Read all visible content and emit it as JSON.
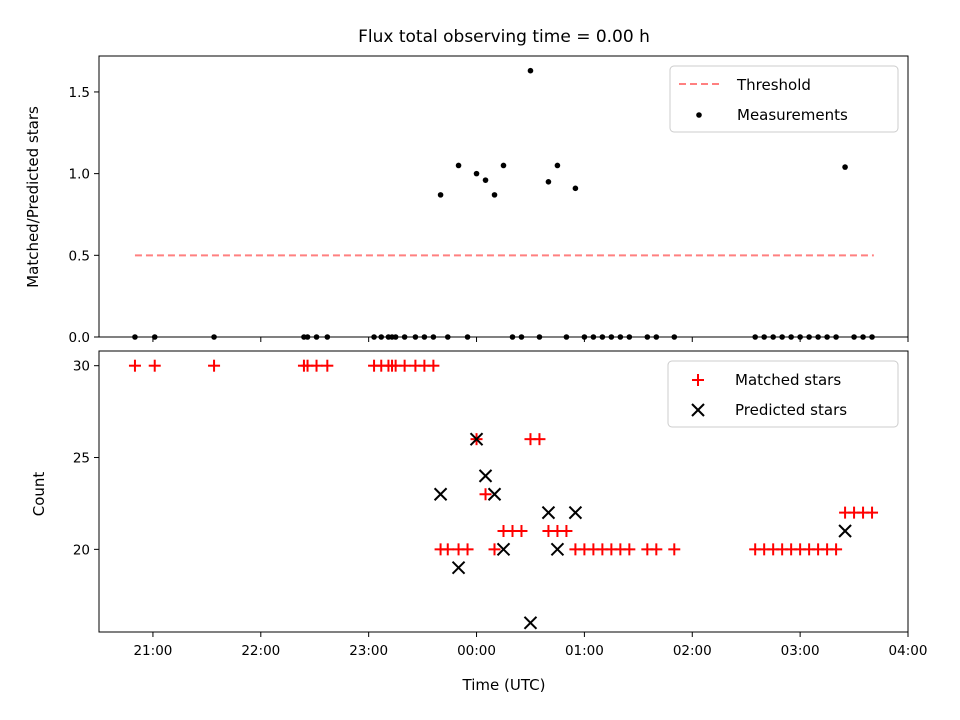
{
  "title": "Flux total observing time = 0.00 h",
  "chart_data": [
    {
      "type": "scatter",
      "ylabel": "Matched/Predicted stars",
      "ylim": [
        0,
        1.72
      ],
      "yticks": [
        0.0,
        0.5,
        1.0,
        1.5
      ],
      "ytick_labels": [
        "0.0",
        "0.5",
        "1.0",
        "1.5"
      ],
      "legend_position": "upper right",
      "threshold": {
        "name": "Threshold",
        "value": 0.5,
        "x_start": "20:50",
        "x_end": "03:41",
        "color": "#ff8080"
      },
      "series": [
        {
          "name": "Measurements",
          "color": "#000000",
          "x": [
            "20:50",
            "21:01",
            "21:34",
            "22:24",
            "22:26",
            "22:31",
            "22:37",
            "23:03",
            "23:07",
            "23:11",
            "23:13",
            "23:15",
            "23:20",
            "23:26",
            "23:31",
            "23:36",
            "23:40",
            "23:44",
            "23:50",
            "23:55",
            "00:00",
            "00:05",
            "00:10",
            "00:15",
            "00:20",
            "00:25",
            "00:30",
            "00:35",
            "00:40",
            "00:45",
            "00:50",
            "00:55",
            "01:00",
            "01:05",
            "01:10",
            "01:15",
            "01:20",
            "01:25",
            "01:35",
            "01:40",
            "01:50",
            "02:35",
            "02:40",
            "02:45",
            "02:50",
            "02:55",
            "03:00",
            "03:05",
            "03:10",
            "03:15",
            "03:20",
            "03:25",
            "03:30",
            "03:35",
            "03:40"
          ],
          "y": [
            0,
            0,
            0,
            0,
            0,
            0,
            0,
            0,
            0,
            0,
            0,
            0,
            0,
            0,
            0,
            0,
            0.87,
            0,
            1.05,
            0,
            1.0,
            0.96,
            0.87,
            1.05,
            0,
            0,
            1.63,
            0,
            0.95,
            1.05,
            0,
            0.91,
            0,
            0,
            0,
            0,
            0,
            0,
            0,
            0,
            0,
            0,
            0,
            0,
            0,
            0,
            0,
            0,
            0,
            0,
            0,
            1.04,
            0,
            0,
            0
          ]
        }
      ]
    },
    {
      "type": "scatter",
      "xlabel": "Time (UTC)",
      "ylabel": "Count",
      "ylim": [
        15.5,
        30.8
      ],
      "yticks": [
        20,
        25,
        30
      ],
      "ytick_labels": [
        "20",
        "25",
        "30"
      ],
      "legend_position": "upper right",
      "series": [
        {
          "name": "Matched stars",
          "marker": "+",
          "color": "#ff0000",
          "x": [
            "20:50",
            "21:01",
            "21:34",
            "22:24",
            "22:26",
            "22:31",
            "22:37",
            "23:03",
            "23:07",
            "23:11",
            "23:13",
            "23:15",
            "23:20",
            "23:26",
            "23:31",
            "23:36",
            "23:40",
            "23:44",
            "23:50",
            "23:55",
            "00:00",
            "00:05",
            "00:10",
            "00:15",
            "00:20",
            "00:25",
            "00:30",
            "00:35",
            "00:40",
            "00:45",
            "00:50",
            "00:55",
            "01:00",
            "01:05",
            "01:10",
            "01:15",
            "01:20",
            "01:25",
            "01:35",
            "01:40",
            "01:50",
            "02:35",
            "02:40",
            "02:45",
            "02:50",
            "02:55",
            "03:00",
            "03:05",
            "03:10",
            "03:15",
            "03:20",
            "03:25",
            "03:30",
            "03:35",
            "03:40"
          ],
          "y": [
            30,
            30,
            30,
            30,
            30,
            30,
            30,
            30,
            30,
            30,
            30,
            30,
            30,
            30,
            30,
            30,
            20,
            20,
            20,
            20,
            26,
            23,
            20,
            21,
            21,
            21,
            26,
            26,
            21,
            21,
            21,
            20,
            20,
            20,
            20,
            20,
            20,
            20,
            20,
            20,
            20,
            20,
            20,
            20,
            20,
            20,
            20,
            20,
            20,
            20,
            20,
            22,
            22,
            22,
            22
          ]
        },
        {
          "name": "Predicted stars",
          "marker": "x",
          "color": "#000000",
          "x": [
            "23:40",
            "23:50",
            "00:00",
            "00:05",
            "00:10",
            "00:15",
            "00:30",
            "00:40",
            "00:45",
            "00:55",
            "03:25"
          ],
          "y": [
            23,
            19,
            26,
            24,
            23,
            20,
            16,
            22,
            20,
            22,
            21
          ]
        }
      ]
    }
  ],
  "xaxis": {
    "range": [
      "20:30",
      "04:00"
    ],
    "ticks": [
      "21:00",
      "22:00",
      "23:00",
      "00:00",
      "01:00",
      "02:00",
      "03:00",
      "04:00"
    ]
  }
}
